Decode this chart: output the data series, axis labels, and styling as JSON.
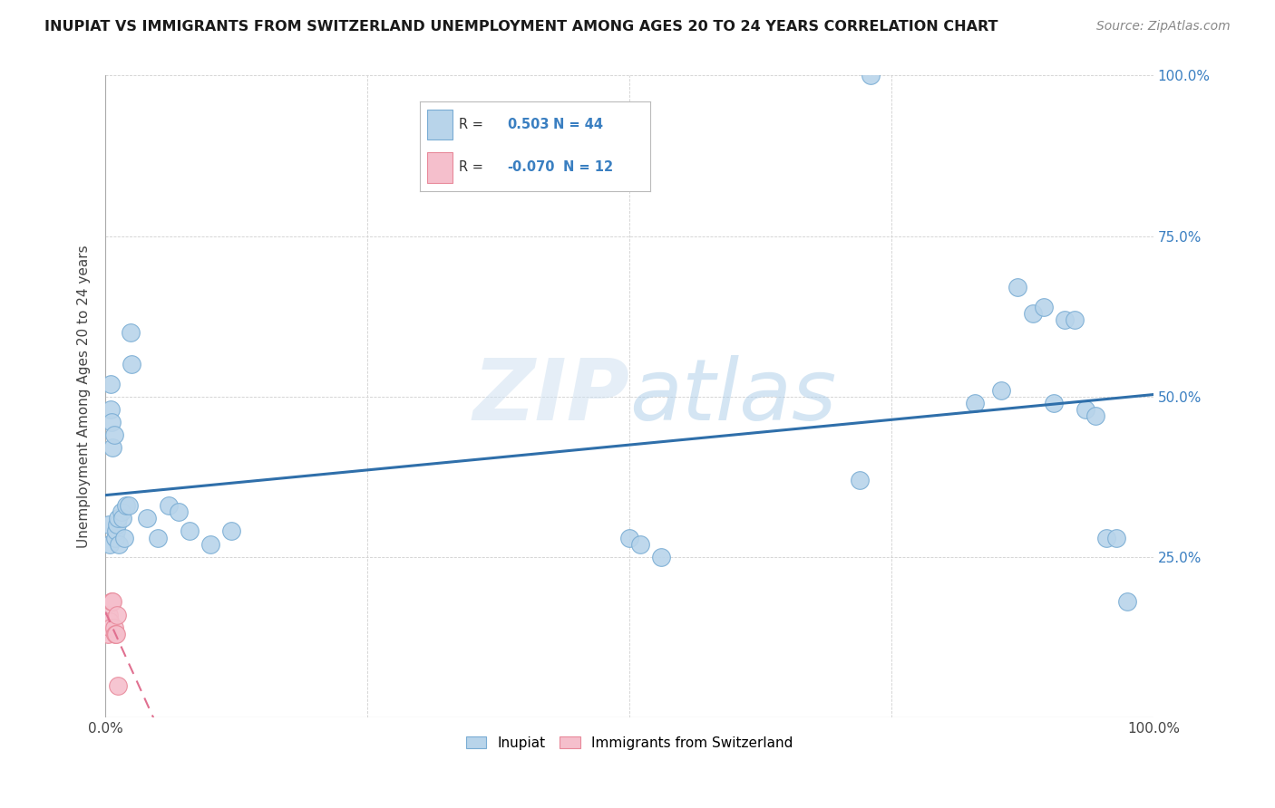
{
  "title": "INUPIAT VS IMMIGRANTS FROM SWITZERLAND UNEMPLOYMENT AMONG AGES 20 TO 24 YEARS CORRELATION CHART",
  "source": "Source: ZipAtlas.com",
  "ylabel": "Unemployment Among Ages 20 to 24 years",
  "xlim": [
    0.0,
    1.0
  ],
  "ylim": [
    0.0,
    1.0
  ],
  "xticks": [
    0.0,
    0.25,
    0.5,
    0.75,
    1.0
  ],
  "yticks": [
    0.0,
    0.25,
    0.5,
    0.75,
    1.0
  ],
  "xtick_labels": [
    "0.0%",
    "",
    "",
    "",
    "100.0%"
  ],
  "right_ytick_labels": [
    "",
    "25.0%",
    "50.0%",
    "75.0%",
    "100.0%"
  ],
  "watermark_zip": "ZIP",
  "watermark_atlas": "atlas",
  "inupiat_R": "0.503",
  "inupiat_N": "44",
  "swiss_R": "-0.070",
  "swiss_N": "12",
  "inupiat_color": "#b8d4ea",
  "inupiat_edge": "#7aadd4",
  "swiss_color": "#f5bfcc",
  "swiss_edge": "#e8899a",
  "inupiat_line_color": "#2f6faa",
  "swiss_line_color": "#e07090",
  "background_color": "#ffffff",
  "grid_color": "#d0d0d0",
  "inupiat_x": [
    0.003,
    0.004,
    0.005,
    0.005,
    0.006,
    0.007,
    0.008,
    0.009,
    0.01,
    0.011,
    0.012,
    0.013,
    0.015,
    0.016,
    0.018,
    0.02,
    0.022,
    0.024,
    0.025,
    0.04,
    0.05,
    0.06,
    0.07,
    0.08,
    0.1,
    0.12,
    0.5,
    0.51,
    0.53,
    0.72,
    0.73,
    0.83,
    0.855,
    0.87,
    0.885,
    0.895,
    0.905,
    0.915,
    0.925,
    0.935,
    0.945,
    0.955,
    0.965,
    0.975
  ],
  "inupiat_y": [
    0.3,
    0.27,
    0.52,
    0.48,
    0.46,
    0.42,
    0.44,
    0.28,
    0.29,
    0.3,
    0.31,
    0.27,
    0.32,
    0.31,
    0.28,
    0.33,
    0.33,
    0.6,
    0.55,
    0.31,
    0.28,
    0.33,
    0.32,
    0.29,
    0.27,
    0.29,
    0.28,
    0.27,
    0.25,
    0.37,
    1.0,
    0.49,
    0.51,
    0.67,
    0.63,
    0.64,
    0.49,
    0.62,
    0.62,
    0.48,
    0.47,
    0.28,
    0.28,
    0.18
  ],
  "swiss_x": [
    0.001,
    0.002,
    0.003,
    0.004,
    0.005,
    0.006,
    0.007,
    0.008,
    0.009,
    0.01,
    0.011,
    0.012
  ],
  "swiss_y": [
    0.14,
    0.13,
    0.16,
    0.15,
    0.14,
    0.18,
    0.18,
    0.14,
    0.13,
    0.13,
    0.16,
    0.05
  ]
}
